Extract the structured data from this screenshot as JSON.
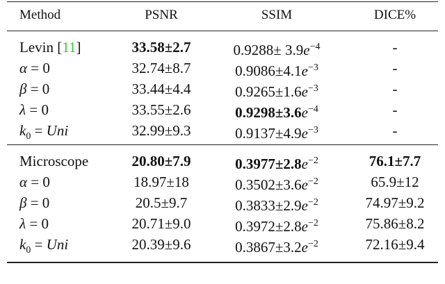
{
  "table": {
    "header": [
      "Method",
      "PSNR",
      "SSIM",
      "DICE%"
    ],
    "groups": [
      {
        "rows": [
          [
            [
              [
                "Levin ",
                "n"
              ],
              [
                "[",
                "n"
              ],
              [
                "11",
                "cite"
              ],
              [
                "]",
                "n"
              ]
            ],
            [
              [
                "33.58±2.7",
                "b"
              ]
            ],
            [
              [
                "0.9288± 3.9",
                "n"
              ],
              [
                "e",
                "i"
              ],
              [
                "−4",
                "sup"
              ]
            ],
            [
              [
                "-",
                "n"
              ]
            ]
          ],
          [
            [
              [
                "α",
                "i"
              ],
              [
                " = 0",
                "n"
              ]
            ],
            [
              [
                "32.74±8.7",
                "n"
              ]
            ],
            [
              [
                "0.9086±4.1",
                "n"
              ],
              [
                "e",
                "i"
              ],
              [
                "−3",
                "sup"
              ]
            ],
            [
              [
                "-",
                "n"
              ]
            ]
          ],
          [
            [
              [
                "β",
                "i"
              ],
              [
                " = 0",
                "n"
              ]
            ],
            [
              [
                "33.44±4.4",
                "n"
              ]
            ],
            [
              [
                "0.9265±1.6",
                "n"
              ],
              [
                "e",
                "i"
              ],
              [
                "−3",
                "sup"
              ]
            ],
            [
              [
                "-",
                "n"
              ]
            ]
          ],
          [
            [
              [
                "λ",
                "i"
              ],
              [
                " = 0",
                "n"
              ]
            ],
            [
              [
                "33.55±2.6",
                "n"
              ]
            ],
            [
              [
                "0.9298±3.6",
                "b"
              ],
              [
                "e",
                "i"
              ],
              [
                "−4",
                "sup"
              ]
            ],
            [
              [
                "-",
                "n"
              ]
            ]
          ],
          [
            [
              [
                "k",
                "i"
              ],
              [
                "0",
                "sub"
              ],
              [
                " = ",
                "n"
              ],
              [
                "Uni",
                "i"
              ]
            ],
            [
              [
                "32.99±9.3",
                "n"
              ]
            ],
            [
              [
                "0.9137±4.9",
                "n"
              ],
              [
                "e",
                "i"
              ],
              [
                "−3",
                "sup"
              ]
            ],
            [
              [
                "-",
                "n"
              ]
            ]
          ]
        ]
      },
      {
        "rows": [
          [
            [
              [
                "Microscope",
                "n"
              ]
            ],
            [
              [
                "20.80±7.9",
                "b"
              ]
            ],
            [
              [
                "0.3977±2.8",
                "b"
              ],
              [
                "e",
                "i"
              ],
              [
                "−2",
                "sup"
              ]
            ],
            [
              [
                "76.1±7.7",
                "b"
              ]
            ]
          ],
          [
            [
              [
                "α",
                "i"
              ],
              [
                " = 0",
                "n"
              ]
            ],
            [
              [
                "18.97±18",
                "n"
              ]
            ],
            [
              [
                "0.3502±3.6",
                "n"
              ],
              [
                "e",
                "i"
              ],
              [
                "−2",
                "sup"
              ]
            ],
            [
              [
                "65.9±12",
                "n"
              ]
            ]
          ],
          [
            [
              [
                "β",
                "i"
              ],
              [
                " = 0",
                "n"
              ]
            ],
            [
              [
                "20.5±9.7",
                "n"
              ]
            ],
            [
              [
                "0.3833±2.9",
                "n"
              ],
              [
                "e",
                "i"
              ],
              [
                "−2",
                "sup"
              ]
            ],
            [
              [
                "74.97±9.2",
                "n"
              ]
            ]
          ],
          [
            [
              [
                "λ",
                "i"
              ],
              [
                " = 0",
                "n"
              ]
            ],
            [
              [
                "20.71±9.0",
                "n"
              ]
            ],
            [
              [
                "0.3972±2.8",
                "n"
              ],
              [
                "e",
                "i"
              ],
              [
                "−2",
                "sup"
              ]
            ],
            [
              [
                "75.86±8.2",
                "n"
              ]
            ]
          ],
          [
            [
              [
                "k",
                "i"
              ],
              [
                "0",
                "sub"
              ],
              [
                " = ",
                "n"
              ],
              [
                "Uni",
                "i"
              ]
            ],
            [
              [
                "20.39±9.6",
                "n"
              ]
            ],
            [
              [
                "0.3867±3.2",
                "n"
              ],
              [
                "e",
                "i"
              ],
              [
                "−2",
                "sup"
              ]
            ],
            [
              [
                "72.16±9.4",
                "n"
              ]
            ]
          ]
        ]
      }
    ]
  }
}
